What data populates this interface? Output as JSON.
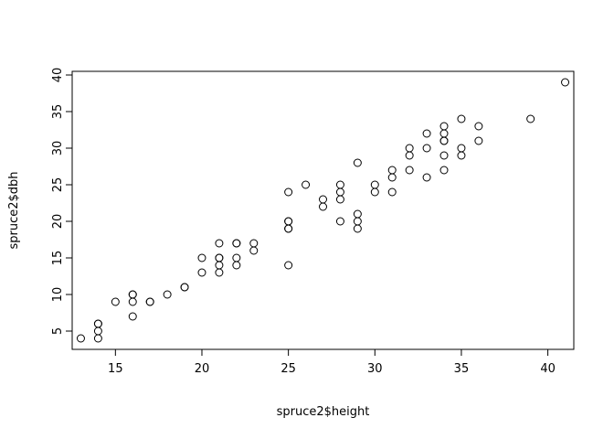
{
  "chart_data": {
    "type": "scatter",
    "title": "",
    "xlabel": "spruce2$height",
    "ylabel": "spruce2$dbh",
    "xlim": [
      12.5,
      41.5
    ],
    "ylim": [
      2.5,
      40.5
    ],
    "xticks": [
      15,
      20,
      25,
      30,
      35,
      40
    ],
    "yticks": [
      5,
      10,
      15,
      20,
      25,
      30,
      35,
      40
    ],
    "grid": false,
    "legend": "none",
    "marker": "open-circle",
    "points": [
      [
        13,
        4
      ],
      [
        14,
        4
      ],
      [
        14,
        5
      ],
      [
        14,
        6
      ],
      [
        14,
        6
      ],
      [
        15,
        9
      ],
      [
        16,
        7
      ],
      [
        16,
        9
      ],
      [
        16,
        10
      ],
      [
        16,
        10
      ],
      [
        17,
        9
      ],
      [
        17,
        9
      ],
      [
        18,
        10
      ],
      [
        19,
        11
      ],
      [
        19,
        11
      ],
      [
        20,
        13
      ],
      [
        20,
        15
      ],
      [
        21,
        13
      ],
      [
        21,
        14
      ],
      [
        21,
        15
      ],
      [
        21,
        15
      ],
      [
        21,
        17
      ],
      [
        22,
        14
      ],
      [
        22,
        15
      ],
      [
        22,
        17
      ],
      [
        22,
        17
      ],
      [
        23,
        16
      ],
      [
        23,
        17
      ],
      [
        25,
        14
      ],
      [
        25,
        19
      ],
      [
        25,
        19
      ],
      [
        25,
        20
      ],
      [
        25,
        20
      ],
      [
        25,
        24
      ],
      [
        26,
        25
      ],
      [
        27,
        22
      ],
      [
        27,
        23
      ],
      [
        28,
        20
      ],
      [
        28,
        23
      ],
      [
        28,
        24
      ],
      [
        28,
        25
      ],
      [
        29,
        19
      ],
      [
        29,
        20
      ],
      [
        29,
        21
      ],
      [
        29,
        28
      ],
      [
        30,
        24
      ],
      [
        30,
        25
      ],
      [
        31,
        24
      ],
      [
        31,
        26
      ],
      [
        31,
        27
      ],
      [
        32,
        27
      ],
      [
        32,
        29
      ],
      [
        32,
        30
      ],
      [
        33,
        26
      ],
      [
        33,
        30
      ],
      [
        33,
        32
      ],
      [
        34,
        27
      ],
      [
        34,
        29
      ],
      [
        34,
        31
      ],
      [
        34,
        31
      ],
      [
        34,
        32
      ],
      [
        34,
        33
      ],
      [
        35,
        29
      ],
      [
        35,
        30
      ],
      [
        35,
        34
      ],
      [
        36,
        31
      ],
      [
        36,
        33
      ],
      [
        39,
        34
      ],
      [
        41,
        39
      ]
    ]
  }
}
